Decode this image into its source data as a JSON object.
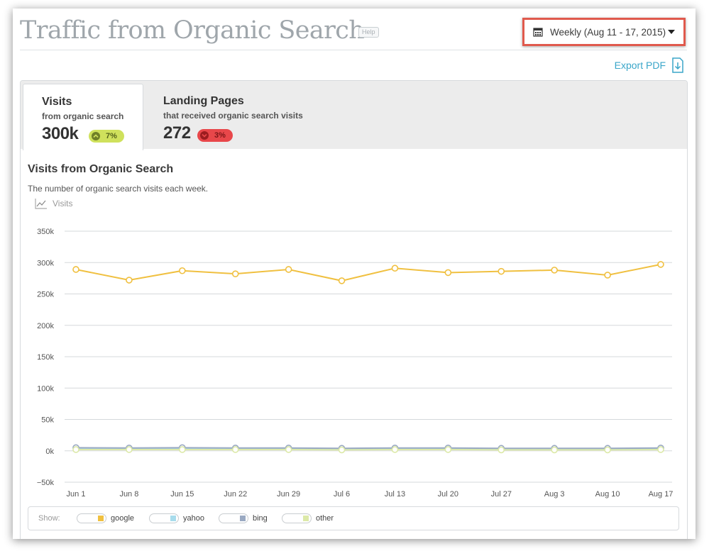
{
  "header": {
    "title": "Traffic from Organic Search",
    "help_label": "Help",
    "period_label": "Weekly (Aug 11 - 17, 2015)",
    "export_label": "Export PDF"
  },
  "tabs": [
    {
      "title": "Visits",
      "subtitle": "from organic search",
      "value": "300k",
      "change": "7%",
      "direction": "up"
    },
    {
      "title": "Landing Pages",
      "subtitle": "that received organic search visits",
      "value": "272",
      "change": "3%",
      "direction": "down"
    }
  ],
  "chart_section": {
    "title": "Visits from Organic Search",
    "description": "The number of organic search visits each week.",
    "metric_label": "Visits"
  },
  "legend": {
    "show_label": "Show:",
    "items": [
      {
        "name": "google",
        "color": "#f0c040"
      },
      {
        "name": "yahoo",
        "color": "#a8dcec"
      },
      {
        "name": "bing",
        "color": "#9aa9c2"
      },
      {
        "name": "other",
        "color": "#dce9a8"
      }
    ]
  },
  "chart_data": {
    "type": "line",
    "x": [
      "Jun 1",
      "Jun 8",
      "Jun 15",
      "Jun 22",
      "Jun 29",
      "Jul 6",
      "Jul 13",
      "Jul 20",
      "Jul 27",
      "Aug 3",
      "Aug 10",
      "Aug 17"
    ],
    "ylim": [
      -50000,
      350000
    ],
    "yticks": [
      -50000,
      0,
      50000,
      100000,
      150000,
      200000,
      250000,
      300000,
      350000
    ],
    "ytick_labels": [
      "−50k",
      "0k",
      "50k",
      "100k",
      "150k",
      "200k",
      "250k",
      "300k",
      "350k"
    ],
    "grid": true,
    "legend_position": "bottom",
    "series": [
      {
        "name": "google",
        "color": "#f0c040",
        "values": [
          289000,
          272000,
          287000,
          282000,
          289000,
          271000,
          291000,
          284000,
          286000,
          288000,
          280000,
          297000
        ]
      },
      {
        "name": "yahoo",
        "color": "#a8dcec",
        "values": [
          4000,
          3500,
          4000,
          3500,
          3500,
          3000,
          3500,
          3500,
          3000,
          3000,
          3000,
          3500
        ]
      },
      {
        "name": "bing",
        "color": "#9aa9c2",
        "values": [
          5000,
          4500,
          5000,
          4500,
          4500,
          4000,
          4500,
          4500,
          4000,
          4000,
          4000,
          4500
        ]
      },
      {
        "name": "other",
        "color": "#dce9a8",
        "values": [
          2000,
          2000,
          2000,
          2000,
          2000,
          1500,
          2000,
          2000,
          1500,
          1500,
          1500,
          2000
        ]
      }
    ]
  }
}
